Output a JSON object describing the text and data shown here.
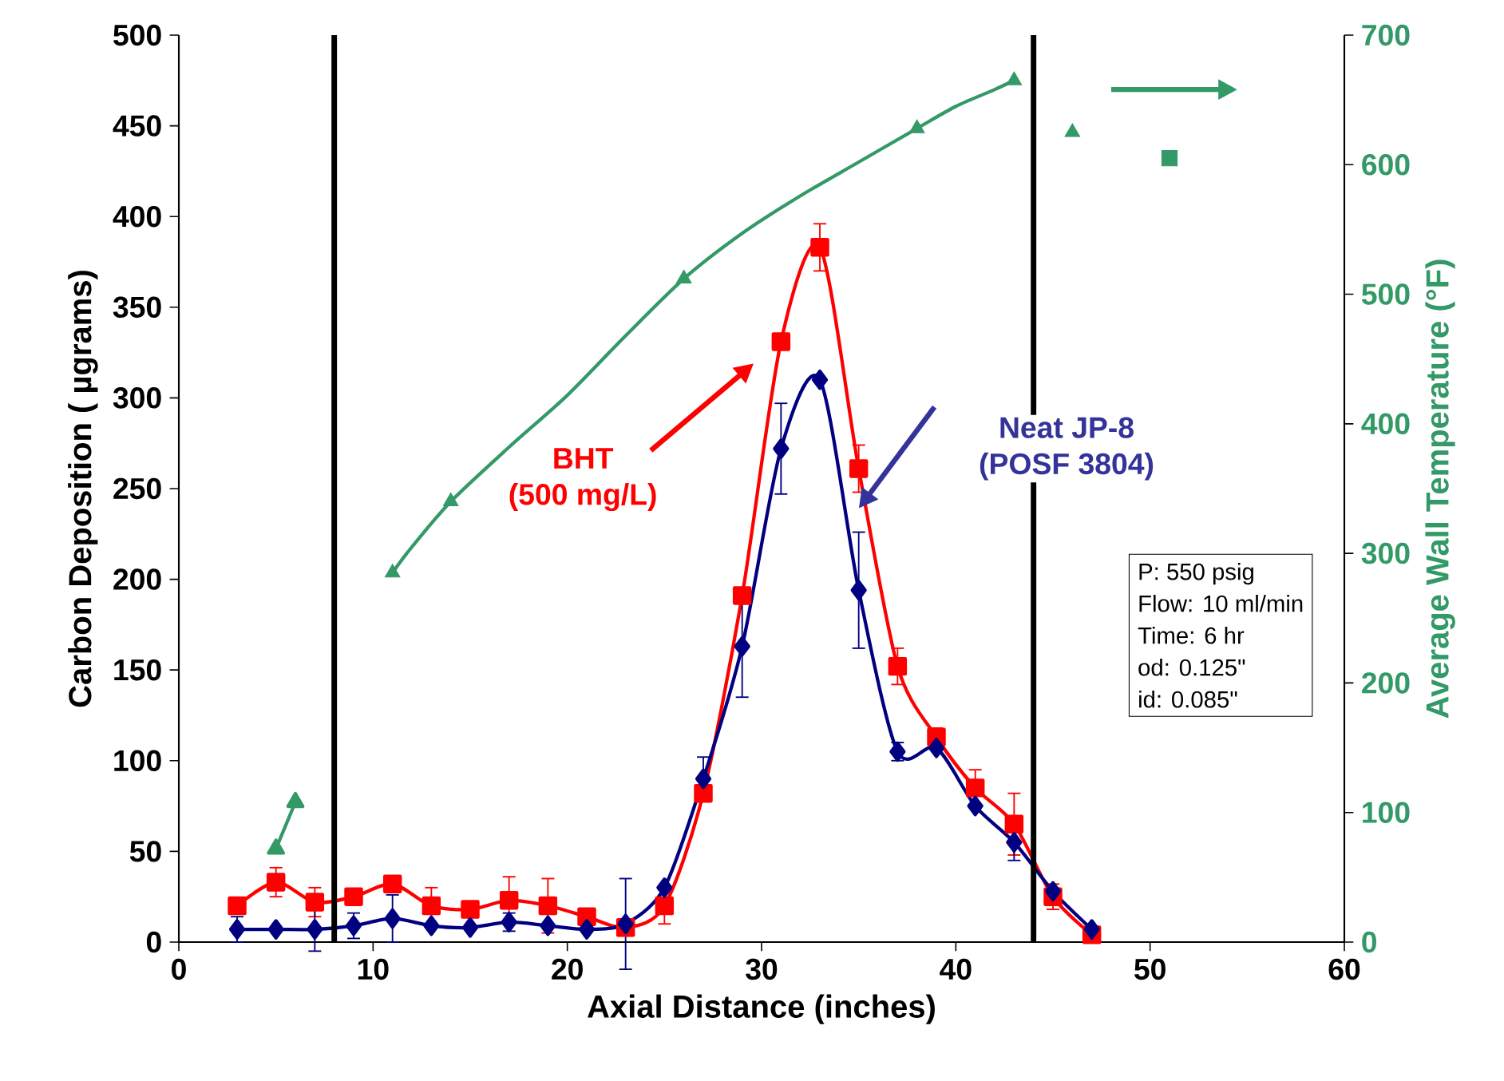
{
  "chart_data": {
    "type": "line",
    "xlabel": "Axial Distance (inches)",
    "ylabel": "Carbon Deposition ( µgrams)",
    "y2label": "Average Wall Temperature (°F)",
    "xlim": [
      0,
      60
    ],
    "xticks": [
      0,
      10,
      20,
      30,
      40,
      50,
      60
    ],
    "ylim": [
      0,
      500
    ],
    "yticks": [
      0,
      50,
      100,
      150,
      200,
      250,
      300,
      350,
      400,
      450,
      500
    ],
    "y2lim": [
      0,
      700
    ],
    "y2ticks": [
      0,
      100,
      200,
      300,
      400,
      500,
      600,
      700
    ],
    "grid": false,
    "series": [
      {
        "color": "#ff0000",
        "marker": "square",
        "x": [
          3,
          5,
          7,
          9,
          11,
          13,
          15,
          17,
          19,
          21,
          23,
          25,
          27,
          29,
          31,
          33,
          35,
          37,
          39,
          41,
          43,
          45,
          47
        ],
        "values": [
          20,
          33,
          22,
          25,
          32,
          20,
          18,
          23,
          20,
          14,
          8,
          20,
          82,
          191,
          331,
          383,
          261,
          152,
          113,
          85,
          65,
          25,
          4
        ],
        "errors": [
          null,
          8,
          8,
          null,
          null,
          10,
          null,
          13,
          15,
          null,
          null,
          10,
          null,
          null,
          null,
          13,
          13,
          10,
          5,
          10,
          17,
          7,
          null
        ]
      },
      {
        "color": "#000080",
        "marker": "diamond",
        "x": [
          3,
          5,
          7,
          9,
          11,
          13,
          15,
          17,
          19,
          21,
          23,
          25,
          27,
          29,
          31,
          33,
          35,
          37,
          39,
          41,
          43,
          45,
          47
        ],
        "values": [
          7,
          7,
          7,
          9,
          13,
          9,
          8,
          11,
          9,
          7,
          10,
          30,
          90,
          163,
          272,
          310,
          194,
          105,
          107,
          75,
          55,
          28,
          7
        ],
        "errors": [
          7,
          null,
          12,
          7,
          13,
          null,
          null,
          5,
          null,
          null,
          25,
          null,
          12,
          28,
          25,
          null,
          32,
          5,
          null,
          null,
          10,
          null,
          null
        ]
      },
      {
        "axis": "y2",
        "color": "#339966",
        "marker": "triangle",
        "x": [
          5,
          6
        ],
        "values": [
          72,
          108
        ]
      },
      {
        "axis": "y2",
        "color": "#339966",
        "marker": "none",
        "x": [
          11,
          12,
          14,
          17,
          20,
          23,
          26,
          29,
          32,
          35,
          38,
          40,
          42,
          43
        ],
        "values": [
          285,
          305,
          340,
          382,
          422,
          468,
          512,
          547,
          576,
          602,
          628,
          645,
          658,
          665
        ]
      },
      {
        "type": "scatter",
        "axis": "y2",
        "color": "#339966",
        "marker": "triangle",
        "x": [
          11,
          14,
          26,
          38,
          43,
          46
        ],
        "values": [
          285,
          340,
          512,
          628,
          665,
          625
        ]
      },
      {
        "type": "scatter",
        "axis": "y2",
        "color": "#339966",
        "marker": "square",
        "x": [
          51
        ],
        "values": [
          605
        ]
      }
    ],
    "ref_lines": [
      {
        "axis": "x",
        "value": 8,
        "color": "#000000"
      },
      {
        "axis": "x",
        "value": 44,
        "color": "#000000"
      }
    ],
    "annotations": [
      "BHT",
      "(500 mg/L)",
      "Neat JP-8",
      "(POSF 3804)",
      "P: 550 psig",
      "Flow: 10 ml/min",
      "Time: 6 hr",
      "od: 0.125\"",
      "id:  0.085\""
    ]
  }
}
